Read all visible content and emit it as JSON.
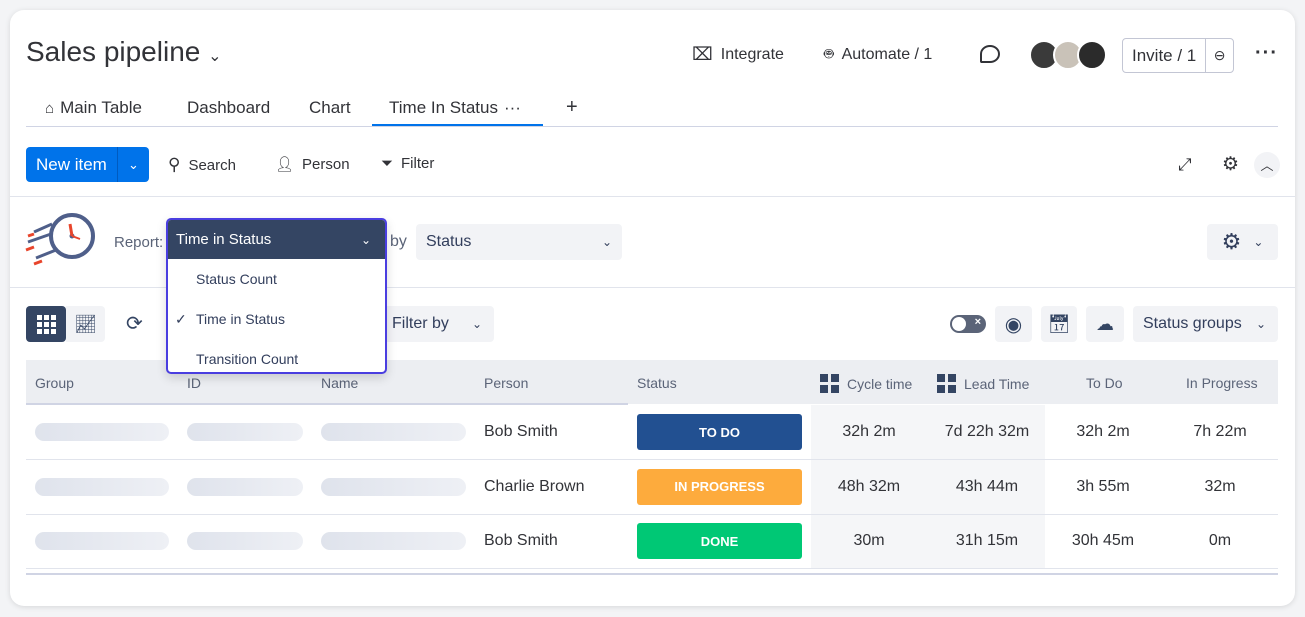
{
  "header": {
    "title": "Sales pipeline",
    "integrate": "Integrate",
    "automate": "Automate / 1",
    "invite": "Invite / 1"
  },
  "tabs": [
    {
      "label": "Main Table"
    },
    {
      "label": "Dashboard"
    },
    {
      "label": "Chart"
    },
    {
      "label": "Time In Status",
      "active": true
    }
  ],
  "toolbar": {
    "new_item": "New item",
    "search": "Search",
    "person": "Person",
    "filter": "Filter"
  },
  "report": {
    "label": "Report:",
    "selected": "Time in Status",
    "options": [
      "Status Count",
      "Time in Status",
      "Transition Count"
    ],
    "by_label": "by",
    "by_value": "Status"
  },
  "controls": {
    "filter_by": "Filter by",
    "status_groups": "Status groups"
  },
  "table": {
    "columns": [
      "Group",
      "ID",
      "Name",
      "Person",
      "Status",
      "Cycle time",
      "Lead Time",
      "To Do",
      "In Progress"
    ],
    "rows": [
      {
        "person": "Bob Smith",
        "status": "TO DO",
        "status_color": "#225091",
        "cycle": "32h 2m",
        "lead": "7d 22h 32m",
        "todo": "32h 2m",
        "inprogress": "7h 22m"
      },
      {
        "person": "Charlie Brown",
        "status": "IN PROGRESS",
        "status_color": "#fdab3d",
        "cycle": "48h 32m",
        "lead": "43h 44m",
        "todo": "3h 55m",
        "inprogress": "32m"
      },
      {
        "person": "Bob Smith",
        "status": "DONE",
        "status_color": "#00c875",
        "cycle": "30m",
        "lead": "31h 15m",
        "todo": "30h 45m",
        "inprogress": "0m"
      }
    ]
  },
  "colors": {
    "accent": "#0073ea",
    "dropdown_header": "#344563",
    "dropdown_border": "#4a3ee0"
  }
}
